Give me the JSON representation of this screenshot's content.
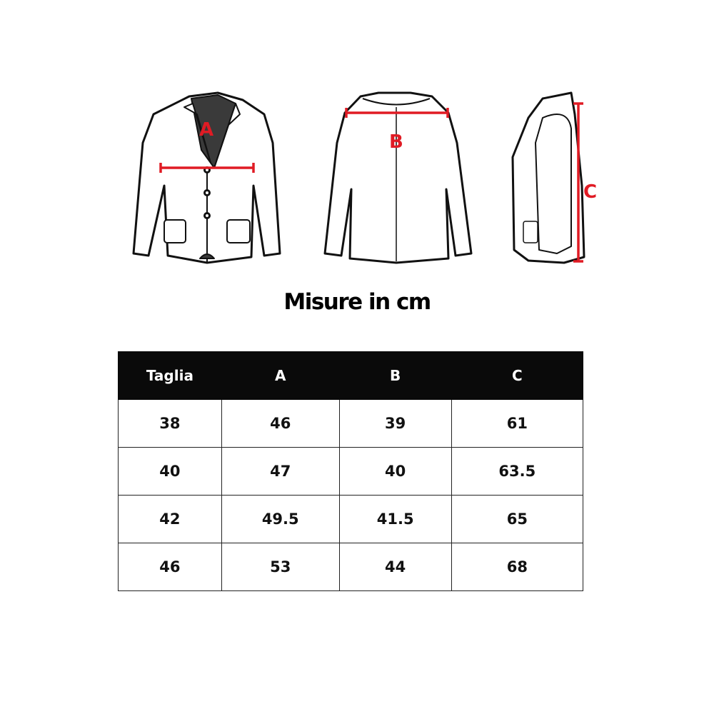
{
  "diagram": {
    "labels": {
      "a": "A",
      "b": "B",
      "c": "C"
    },
    "measure_color": "#e01b24"
  },
  "title": "Misure in cm",
  "table": {
    "headers": [
      "Taglia",
      "A",
      "B",
      "C"
    ],
    "rows": [
      [
        "38",
        "46",
        "39",
        "61"
      ],
      [
        "40",
        "47",
        "40",
        "63.5"
      ],
      [
        "42",
        "49.5",
        "41.5",
        "65"
      ],
      [
        "46",
        "53",
        "44",
        "68"
      ]
    ]
  }
}
